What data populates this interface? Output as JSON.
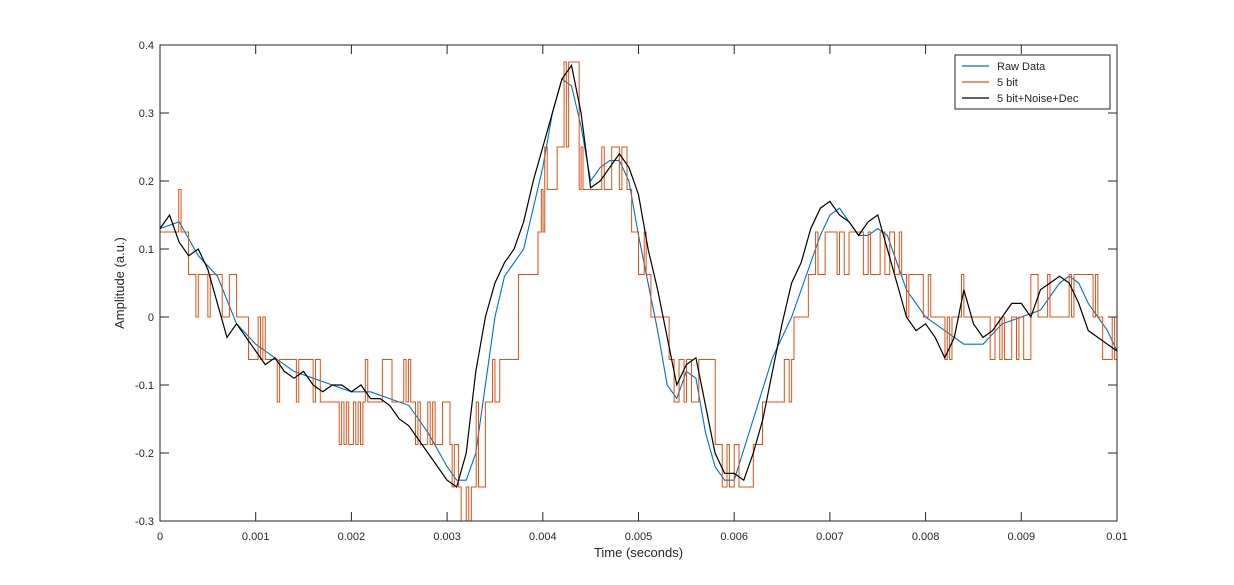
{
  "chart_data": {
    "type": "line",
    "title": "",
    "xlabel": "Time (seconds)",
    "ylabel": "Amplitude (a.u.)",
    "xlim": [
      0,
      0.01
    ],
    "ylim": [
      -0.3,
      0.4
    ],
    "grid": false,
    "legend_position": "top-right",
    "x_ticks": [
      0,
      0.001,
      0.002,
      0.003,
      0.004,
      0.005,
      0.006,
      0.007,
      0.008,
      0.009,
      0.01
    ],
    "x_tick_labels": [
      "0",
      "0.001",
      "0.002",
      "0.003",
      "0.004",
      "0.005",
      "0.006",
      "0.007",
      "0.008",
      "0.009",
      "0.01"
    ],
    "y_ticks": [
      -0.3,
      -0.2,
      -0.1,
      0,
      0.1,
      0.2,
      0.3,
      0.4
    ],
    "y_tick_labels": [
      "-0.3",
      "-0.2",
      "-0.1",
      "0",
      "0.1",
      "0.2",
      "0.3",
      "0.4"
    ],
    "quantization_step": 0.0625,
    "series": [
      {
        "name": "Raw Data",
        "color": "#0072BD",
        "x": [
          0,
          0.0002,
          0.0004,
          0.0006,
          0.0008,
          0.001,
          0.0012,
          0.0014,
          0.0016,
          0.0018,
          0.002,
          0.0022,
          0.0024,
          0.0026,
          0.0028,
          0.003,
          0.0031,
          0.0032,
          0.0033,
          0.0034,
          0.0035,
          0.0036,
          0.0038,
          0.004,
          0.0041,
          0.0042,
          0.0043,
          0.0044,
          0.0045,
          0.0046,
          0.0047,
          0.0048,
          0.0049,
          0.005,
          0.0051,
          0.0052,
          0.0053,
          0.0054,
          0.0055,
          0.0056,
          0.0057,
          0.0058,
          0.0059,
          0.006,
          0.0062,
          0.0064,
          0.0066,
          0.0068,
          0.0069,
          0.007,
          0.0071,
          0.0072,
          0.0073,
          0.0074,
          0.0075,
          0.0076,
          0.0077,
          0.0078,
          0.0079,
          0.008,
          0.0082,
          0.0084,
          0.0086,
          0.0088,
          0.009,
          0.0092,
          0.0094,
          0.0095,
          0.0096,
          0.0097,
          0.0098,
          0.0099,
          0.01
        ],
        "y": [
          0.13,
          0.14,
          0.09,
          0.06,
          -0.01,
          -0.04,
          -0.06,
          -0.08,
          -0.09,
          -0.1,
          -0.11,
          -0.11,
          -0.12,
          -0.13,
          -0.17,
          -0.22,
          -0.24,
          -0.24,
          -0.2,
          -0.1,
          0,
          0.06,
          0.1,
          0.22,
          0.3,
          0.35,
          0.34,
          0.28,
          0.2,
          0.22,
          0.23,
          0.23,
          0.2,
          0.12,
          0.05,
          -0.02,
          -0.1,
          -0.12,
          -0.08,
          -0.09,
          -0.17,
          -0.22,
          -0.24,
          -0.24,
          -0.15,
          -0.06,
          0,
          0.08,
          0.12,
          0.15,
          0.16,
          0.14,
          0.12,
          0.12,
          0.13,
          0.12,
          0.08,
          0.04,
          0.02,
          0,
          -0.02,
          -0.04,
          -0.04,
          -0.01,
          0,
          0.01,
          0.05,
          0.06,
          0.05,
          0.02,
          0,
          -0.02,
          -0.05
        ]
      },
      {
        "name": "5 bit",
        "color": "#D95319",
        "x": [
          0,
          0.00022,
          0.00035,
          0.0006,
          0.00065,
          0.0008,
          0.00095,
          0.0011,
          0.0017,
          0.00212,
          0.0024,
          0.00262,
          0.00272,
          0.00303,
          0.00312,
          0.00328,
          0.0034,
          0.00355,
          0.00377,
          0.00395,
          0.00402,
          0.00415,
          0.00427,
          0.00438,
          0.00446,
          0.00472,
          0.00488,
          0.005,
          0.00508,
          0.00518,
          0.00532,
          0.00545,
          0.00558,
          0.00568,
          0.00585,
          0.00605,
          0.0062,
          0.00632,
          0.0066,
          0.00665,
          0.0068,
          0.00695,
          0.0072,
          0.0075,
          0.0077,
          0.0078,
          0.0079,
          0.00795,
          0.00808,
          0.0083,
          0.0086,
          0.0088,
          0.0089,
          0.0091,
          0.0093,
          0.0095,
          0.0096,
          0.0097,
          0.0098,
          0.0099
        ],
        "y": [
          0.125,
          0.125,
          0.0625,
          0.0625,
          0,
          0,
          -0.0625,
          -0.0625,
          -0.125,
          -0.125,
          -0.125,
          -0.125,
          -0.1875,
          -0.1875,
          -0.25,
          -0.25,
          -0.125,
          -0.0625,
          0.0625,
          0.125,
          0.1875,
          0.25,
          0.375,
          0.1875,
          0.1875,
          0.25,
          0.1875,
          0.125,
          0.0625,
          0,
          -0.0625,
          -0.0625,
          -0.125,
          -0.0625,
          -0.1875,
          -0.25,
          -0.1875,
          -0.125,
          -0.0625,
          0,
          0.0625,
          0.125,
          0.125,
          0.125,
          0.0625,
          0.0625,
          0.0625,
          0.0625,
          0,
          0,
          0,
          -0.0625,
          0,
          0,
          0,
          0.0625,
          0.0625,
          0,
          0,
          -0.0625
        ]
      },
      {
        "name": "5 bit+Noise+Dec",
        "color": "#000000",
        "x": [
          0,
          0.0001,
          0.0002,
          0.0003,
          0.0004,
          0.0005,
          0.0006,
          0.0007,
          0.0008,
          0.0009,
          0.001,
          0.0011,
          0.0012,
          0.0013,
          0.0014,
          0.0015,
          0.0016,
          0.0017,
          0.0018,
          0.0019,
          0.002,
          0.0021,
          0.0022,
          0.0023,
          0.0024,
          0.0025,
          0.0026,
          0.0027,
          0.0028,
          0.0029,
          0.003,
          0.0031,
          0.0032,
          0.0033,
          0.0034,
          0.0035,
          0.0036,
          0.0037,
          0.0038,
          0.0039,
          0.004,
          0.0041,
          0.0042,
          0.0043,
          0.0044,
          0.0045,
          0.0046,
          0.0047,
          0.0048,
          0.0049,
          0.005,
          0.0051,
          0.0052,
          0.0053,
          0.0054,
          0.0055,
          0.0056,
          0.0057,
          0.0058,
          0.0059,
          0.006,
          0.0061,
          0.0062,
          0.0063,
          0.0064,
          0.0065,
          0.0066,
          0.0067,
          0.0068,
          0.0069,
          0.007,
          0.0071,
          0.0072,
          0.0073,
          0.0074,
          0.0075,
          0.0076,
          0.0077,
          0.0078,
          0.0079,
          0.008,
          0.0081,
          0.0082,
          0.0083,
          0.0084,
          0.0085,
          0.0086,
          0.0087,
          0.0088,
          0.0089,
          0.009,
          0.0091,
          0.0092,
          0.0093,
          0.0094,
          0.0095,
          0.0096,
          0.0097,
          0.0098,
          0.0099,
          0.01
        ],
        "y": [
          0.13,
          0.15,
          0.11,
          0.09,
          0.1,
          0.07,
          0.02,
          -0.03,
          -0.01,
          -0.03,
          -0.05,
          -0.07,
          -0.06,
          -0.08,
          -0.09,
          -0.08,
          -0.1,
          -0.11,
          -0.1,
          -0.1,
          -0.11,
          -0.1,
          -0.12,
          -0.12,
          -0.13,
          -0.15,
          -0.16,
          -0.18,
          -0.2,
          -0.22,
          -0.24,
          -0.25,
          -0.2,
          -0.08,
          0,
          0.05,
          0.08,
          0.1,
          0.14,
          0.2,
          0.25,
          0.3,
          0.35,
          0.37,
          0.3,
          0.19,
          0.2,
          0.22,
          0.24,
          0.22,
          0.18,
          0.1,
          0.04,
          -0.03,
          -0.1,
          -0.07,
          -0.06,
          -0.13,
          -0.2,
          -0.23,
          -0.23,
          -0.24,
          -0.2,
          -0.15,
          -0.08,
          -0.01,
          0.05,
          0.08,
          0.13,
          0.16,
          0.17,
          0.15,
          0.14,
          0.12,
          0.14,
          0.15,
          0.1,
          0.05,
          0.0,
          -0.02,
          -0.01,
          -0.03,
          -0.06,
          -0.03,
          0.04,
          -0.01,
          -0.03,
          -0.02,
          0.0,
          0.02,
          0.02,
          0.0,
          0.04,
          0.05,
          0.06,
          0.05,
          0.02,
          -0.02,
          -0.03,
          -0.04,
          -0.05
        ]
      }
    ]
  }
}
